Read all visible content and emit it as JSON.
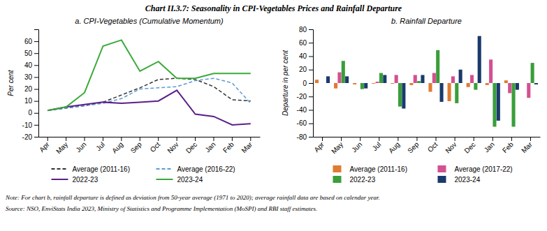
{
  "title": "Chart II.3.7: Seasonality in CPI-Vegetables Prices and Rainfall Departure",
  "annotations": [
    "Note: For chart b, rainfall departure is defined as deviation from 50-year average (1971 to 2020); average rainfall data are based on calendar year.",
    "Source: NSO, EnviStats India 2023, Ministry of Statistics and Programme Implementation (MoSPI) and RBI staff estimates."
  ],
  "chart_data": [
    {
      "type": "line",
      "title": "a. CPI-Vegetables (Cumulative Momentum)",
      "ylabel": "Per cent",
      "categories": [
        "Apr",
        "May",
        "Jun",
        "Jul",
        "Aug",
        "Sep",
        "Oct",
        "Nov",
        "Dec",
        "Jan",
        "Feb",
        "Mar"
      ],
      "ylim": [
        -20,
        70
      ],
      "yticks": [
        -20,
        -10,
        0,
        10,
        20,
        30,
        40,
        50,
        60
      ],
      "grid": false,
      "legend": "bottom",
      "series": [
        {
          "name": "Average (2011-16)",
          "color": "#333333",
          "line_style": "dashed",
          "values": [
            2,
            4,
            6,
            9,
            15,
            21,
            28,
            29,
            28,
            22,
            11,
            10
          ]
        },
        {
          "name": "Average (2016-22)",
          "color": "#5b9bd5",
          "line_style": "dashed",
          "values": [
            2,
            4,
            6,
            8,
            12,
            20,
            21,
            22,
            27,
            29,
            25,
            8
          ]
        },
        {
          "name": "2022-23",
          "color": "#5b1f8a",
          "line_style": "solid",
          "values": [
            2,
            5,
            7,
            9,
            8,
            9,
            10,
            19,
            -1,
            -3,
            -10,
            -9
          ]
        },
        {
          "name": "2023-24",
          "color": "#3aaa3a",
          "line_style": "solid",
          "values": [
            2,
            5,
            17,
            56,
            61,
            35,
            43,
            29,
            29,
            33,
            33,
            33
          ]
        }
      ]
    },
    {
      "type": "bar",
      "title": "b. Rainfall Departure",
      "ylabel": "Departure in per cent",
      "categories": [
        "Apr",
        "May",
        "Jun",
        "Jul",
        "Aug",
        "Sep",
        "Oct",
        "Nov",
        "Dec",
        "Jan",
        "Feb",
        "Mar"
      ],
      "ylim": [
        -80,
        80
      ],
      "yticks": [
        -80,
        -60,
        -40,
        -20,
        0,
        20,
        40,
        60,
        80
      ],
      "grid": false,
      "legend": "bottom",
      "series": [
        {
          "name": "Average (2011-16)",
          "color": "#e07b30",
          "values": [
            5,
            -8,
            -2,
            -1,
            -1,
            -3,
            -13,
            -27,
            -6,
            -3,
            4,
            0
          ]
        },
        {
          "name": "Average (2017-22)",
          "color": "#d45090",
          "values": [
            0,
            16,
            0,
            2,
            12,
            12,
            15,
            10,
            12,
            35,
            -15,
            -22
          ]
        },
        {
          "name": "2022-23",
          "color": "#3a9e3a",
          "values": [
            0,
            33,
            -9,
            15,
            -35,
            3,
            49,
            -30,
            -10,
            -65,
            -65,
            30
          ]
        },
        {
          "name": "2023-24",
          "color": "#1a3a6b",
          "values": [
            10,
            10,
            -8,
            12,
            -38,
            12,
            -28,
            20,
            70,
            -56,
            -10,
            -2
          ]
        }
      ]
    }
  ]
}
